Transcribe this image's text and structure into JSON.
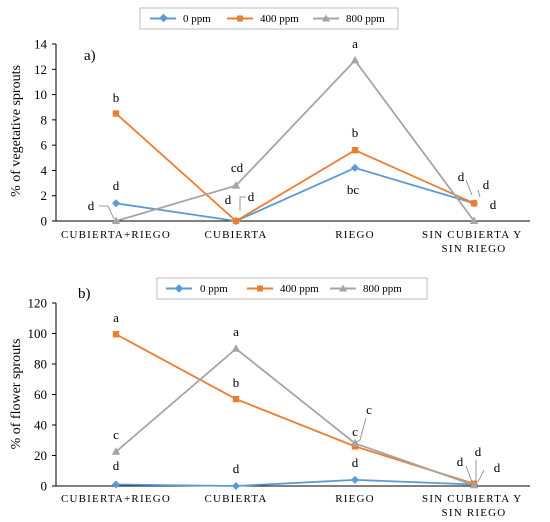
{
  "colors": {
    "s0": "#5b9bd5",
    "s400": "#ed7d31",
    "s800": "#a5a5a5"
  },
  "chart_data": [
    {
      "type": "line",
      "panel": "a)",
      "categories": [
        "CUBIERTA+RIEGO",
        "CUBIERTA",
        "RIEGO",
        "SIN CUBIERTA Y SIN RIEGO"
      ],
      "series": [
        {
          "name": "0 ppm",
          "values": [
            1.4,
            0.0,
            4.2,
            1.4
          ]
        },
        {
          "name": "400 ppm",
          "values": [
            8.5,
            0.0,
            5.6,
            1.4
          ]
        },
        {
          "name": "800 ppm",
          "values": [
            0.0,
            2.8,
            12.7,
            0.0
          ]
        }
      ],
      "ylabel": "% of  vegetative sprouts",
      "ylim": [
        0,
        14
      ],
      "yticks": [
        0,
        2,
        4,
        6,
        8,
        10,
        12,
        14
      ],
      "grid": false,
      "legend": "top-center",
      "annotations": [
        {
          "category": 0,
          "value": 8.5,
          "text": "b"
        },
        {
          "category": 0,
          "value": 1.4,
          "text": "d"
        },
        {
          "category": 0,
          "value": 0.0,
          "text": "d"
        },
        {
          "category": 1,
          "value": 2.8,
          "text": "cd"
        },
        {
          "category": 1,
          "value": 0.0,
          "text": "d"
        },
        {
          "category": 1,
          "value": 0.0,
          "text": "d"
        },
        {
          "category": 2,
          "value": 12.7,
          "text": "a"
        },
        {
          "category": 2,
          "value": 5.6,
          "text": "b"
        },
        {
          "category": 2,
          "value": 4.2,
          "text": "bc"
        },
        {
          "category": 3,
          "value": 1.4,
          "text": "d"
        },
        {
          "category": 3,
          "value": 1.4,
          "text": "d"
        },
        {
          "category": 3,
          "value": 0.0,
          "text": "d"
        }
      ]
    },
    {
      "type": "line",
      "panel": "b)",
      "categories": [
        "CUBIERTA+RIEGO",
        "CUBIERTA",
        "RIEGO",
        "SIN CUBIERTA Y SIN RIEGO"
      ],
      "series": [
        {
          "name": "0 ppm",
          "values": [
            1.0,
            0.0,
            4.0,
            1.0
          ]
        },
        {
          "name": "400 ppm",
          "values": [
            99.5,
            57.0,
            26.0,
            1.5
          ]
        },
        {
          "name": "800 ppm",
          "values": [
            22.5,
            90.0,
            28.0,
            0.5
          ]
        }
      ],
      "ylabel": "% of flower sprouts",
      "ylim": [
        0,
        120
      ],
      "yticks": [
        0,
        20,
        40,
        60,
        80,
        100,
        120
      ],
      "grid": false,
      "legend": "top-center",
      "annotations": [
        {
          "category": 0,
          "value": 99.5,
          "text": "a"
        },
        {
          "category": 0,
          "value": 22.5,
          "text": "c"
        },
        {
          "category": 0,
          "value": 1.0,
          "text": "d"
        },
        {
          "category": 1,
          "value": 90.0,
          "text": "a"
        },
        {
          "category": 1,
          "value": 57.0,
          "text": "b"
        },
        {
          "category": 1,
          "value": 0.0,
          "text": "d"
        },
        {
          "category": 2,
          "value": 28.0,
          "text": "c"
        },
        {
          "category": 2,
          "value": 26.0,
          "text": "c"
        },
        {
          "category": 2,
          "value": 4.0,
          "text": "d"
        },
        {
          "category": 3,
          "value": 1.5,
          "text": "d"
        },
        {
          "category": 3,
          "value": 1.0,
          "text": "d"
        },
        {
          "category": 3,
          "value": 0.5,
          "text": "d"
        }
      ]
    }
  ]
}
